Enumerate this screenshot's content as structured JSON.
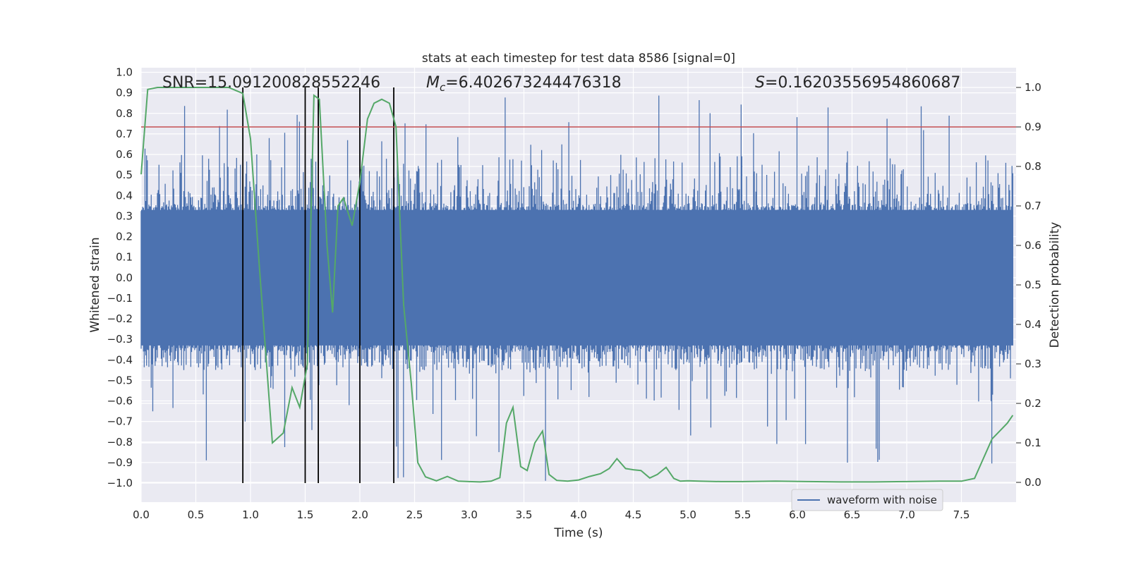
{
  "chart_data": {
    "type": "line",
    "title": "stats at each timestep for test data 8586 [signal=0]",
    "xlabel": "Time (s)",
    "ylabel": "Whitened strain",
    "y2label": "Detection probability",
    "xlim": [
      0.0,
      8.0
    ],
    "ylim": [
      -1.0,
      1.0
    ],
    "y2lim": [
      0.0,
      1.0
    ],
    "x_ticks": [
      "0.0",
      "0.5",
      "1.0",
      "1.5",
      "2.0",
      "2.5",
      "3.0",
      "3.5",
      "4.0",
      "4.5",
      "5.0",
      "5.5",
      "6.0",
      "6.5",
      "7.0",
      "7.5"
    ],
    "y_ticks": [
      "1.0",
      "0.9",
      "0.8",
      "0.7",
      "0.6",
      "0.5",
      "0.4",
      "0.3",
      "0.2",
      "0.1",
      "0.0",
      "−0.1",
      "−0.2",
      "−0.3",
      "−0.4",
      "−0.5",
      "−0.6",
      "−0.7",
      "−0.8",
      "−0.9",
      "−1.0"
    ],
    "y2_ticks": [
      "1.0",
      "0.9",
      "0.8",
      "0.7",
      "0.6",
      "0.5",
      "0.4",
      "0.3",
      "0.2",
      "0.1",
      "0.0"
    ],
    "annotations": {
      "snr": "SNR=15.091200828552246",
      "mc_symbol": "M",
      "mc_sub": "c",
      "mc_value": "=6.402673244476318",
      "s_symbol": "S",
      "s_value": "=0.16203556954860687"
    },
    "legend": {
      "label": "waveform with noise",
      "location": "lower-right"
    },
    "threshold": {
      "y2": 0.9,
      "color": "#c44e52"
    },
    "vertical_lines": [
      0.93,
      1.5,
      1.62,
      2.0,
      2.31
    ],
    "waveform": {
      "name": "waveform with noise",
      "color": "#4c72b0",
      "core_amplitude": 0.33,
      "envelope": [
        0.45,
        0.6,
        0.9
      ]
    },
    "probability": {
      "name": "detection probability",
      "color": "#55a868",
      "x": [
        0.0,
        0.06,
        0.15,
        0.3,
        0.5,
        0.7,
        0.8,
        0.93,
        1.0,
        1.08,
        1.2,
        1.3,
        1.38,
        1.45,
        1.52,
        1.58,
        1.63,
        1.7,
        1.75,
        1.8,
        1.85,
        1.93,
        2.0,
        2.07,
        2.13,
        2.2,
        2.27,
        2.33,
        2.4,
        2.47,
        2.53,
        2.6,
        2.7,
        2.8,
        2.9,
        3.0,
        3.1,
        3.2,
        3.28,
        3.34,
        3.4,
        3.47,
        3.53,
        3.6,
        3.67,
        3.73,
        3.8,
        3.9,
        4.0,
        4.1,
        4.2,
        4.28,
        4.35,
        4.43,
        4.5,
        4.57,
        4.65,
        4.72,
        4.8,
        4.87,
        4.93,
        5.0,
        5.1,
        5.3,
        5.5,
        5.8,
        6.1,
        6.4,
        6.7,
        7.0,
        7.3,
        7.5,
        7.62,
        7.7,
        7.78,
        7.85,
        7.92,
        7.97
      ],
      "y": [
        0.78,
        0.995,
        1.0,
        1.0,
        1.0,
        1.0,
        1.0,
        0.985,
        0.87,
        0.55,
        0.1,
        0.125,
        0.24,
        0.19,
        0.3,
        0.98,
        0.97,
        0.6,
        0.43,
        0.7,
        0.72,
        0.65,
        0.76,
        0.92,
        0.96,
        0.97,
        0.96,
        0.9,
        0.45,
        0.25,
        0.05,
        0.014,
        0.004,
        0.015,
        0.003,
        0.002,
        0.001,
        0.003,
        0.012,
        0.15,
        0.19,
        0.04,
        0.03,
        0.1,
        0.13,
        0.02,
        0.005,
        0.003,
        0.006,
        0.015,
        0.022,
        0.035,
        0.06,
        0.035,
        0.032,
        0.03,
        0.011,
        0.02,
        0.038,
        0.01,
        0.003,
        0.004,
        0.003,
        0.002,
        0.002,
        0.003,
        0.002,
        0.001,
        0.001,
        0.002,
        0.003,
        0.003,
        0.01,
        0.06,
        0.11,
        0.13,
        0.15,
        0.17
      ]
    }
  }
}
